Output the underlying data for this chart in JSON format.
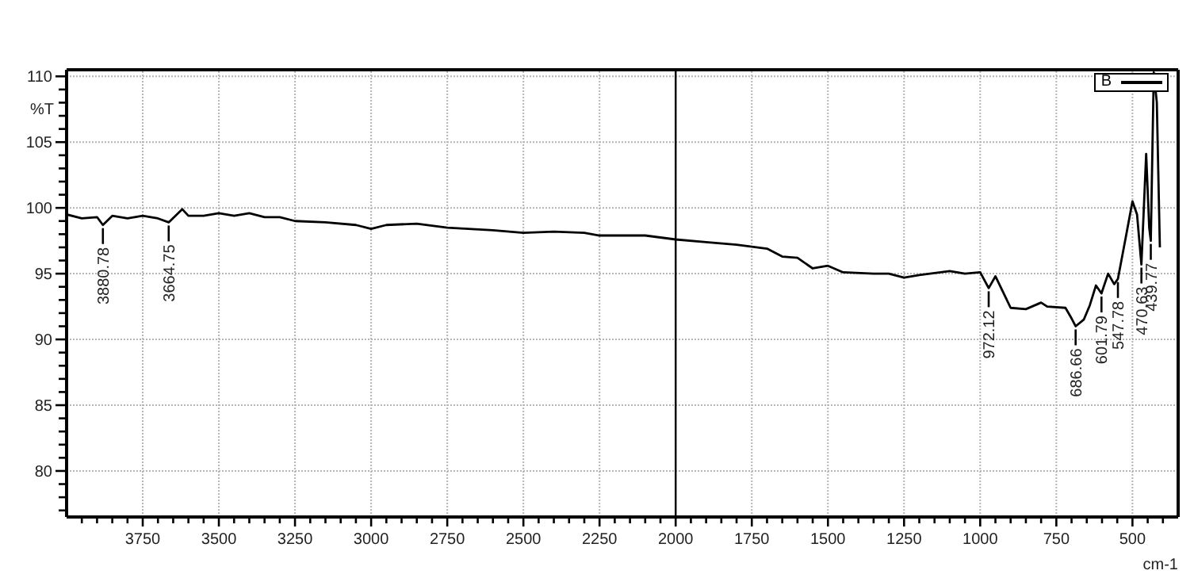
{
  "chart_data": {
    "type": "line",
    "ylabel": "%T",
    "xlabel": "cm-1",
    "xlim": [
      4000,
      350
    ],
    "ylim": [
      76.5,
      110.5
    ],
    "xticks": [
      {
        "value": 3950,
        "label": null
      },
      {
        "value": 3900,
        "label": null
      },
      {
        "value": 3850,
        "label": null
      },
      {
        "value": 3800,
        "label": null
      },
      3750,
      {
        "value": 3700,
        "label": null
      },
      {
        "value": 3650,
        "label": null
      },
      {
        "value": 3600,
        "label": null
      },
      {
        "value": 3550,
        "label": null
      },
      3500,
      {
        "value": 3450,
        "label": null
      },
      {
        "value": 3400,
        "label": null
      },
      {
        "value": 3350,
        "label": null
      },
      {
        "value": 3300,
        "label": null
      },
      3250,
      {
        "value": 3200,
        "label": null
      },
      {
        "value": 3150,
        "label": null
      },
      {
        "value": 3100,
        "label": null
      },
      {
        "value": 3050,
        "label": null
      },
      3000,
      {
        "value": 2950,
        "label": null
      },
      {
        "value": 2900,
        "label": null
      },
      {
        "value": 2850,
        "label": null
      },
      {
        "value": 2800,
        "label": null
      },
      2750,
      {
        "value": 2700,
        "label": null
      },
      {
        "value": 2650,
        "label": null
      },
      {
        "value": 2600,
        "label": null
      },
      {
        "value": 2550,
        "label": null
      },
      2500,
      {
        "value": 2450,
        "label": null
      },
      {
        "value": 2400,
        "label": null
      },
      {
        "value": 2350,
        "label": null
      },
      {
        "value": 2300,
        "label": null
      },
      2250,
      {
        "value": 2200,
        "label": null
      },
      {
        "value": 2150,
        "label": null
      },
      {
        "value": 2100,
        "label": null
      },
      {
        "value": 2050,
        "label": null
      },
      2000,
      {
        "value": 1950,
        "label": null
      },
      {
        "value": 1900,
        "label": null
      },
      {
        "value": 1850,
        "label": null
      },
      {
        "value": 1800,
        "label": null
      },
      1750,
      {
        "value": 1700,
        "label": null
      },
      {
        "value": 1650,
        "label": null
      },
      {
        "value": 1600,
        "label": null
      },
      {
        "value": 1550,
        "label": null
      },
      1500,
      {
        "value": 1450,
        "label": null
      },
      {
        "value": 1400,
        "label": null
      },
      {
        "value": 1350,
        "label": null
      },
      {
        "value": 1300,
        "label": null
      },
      1250,
      {
        "value": 1200,
        "label": null
      },
      {
        "value": 1150,
        "label": null
      },
      {
        "value": 1100,
        "label": null
      },
      {
        "value": 1050,
        "label": null
      },
      1000,
      {
        "value": 950,
        "label": null
      },
      {
        "value": 900,
        "label": null
      },
      {
        "value": 850,
        "label": null
      },
      {
        "value": 800,
        "label": null
      },
      750,
      {
        "value": 700,
        "label": null
      },
      {
        "value": 650,
        "label": null
      },
      {
        "value": 600,
        "label": null
      },
      {
        "value": 550,
        "label": null
      },
      500,
      {
        "value": 450,
        "label": null
      },
      {
        "value": 400,
        "label": null
      }
    ],
    "yticks": [
      {
        "value": 77,
        "label": null
      },
      {
        "value": 78,
        "label": null
      },
      {
        "value": 79,
        "label": null
      },
      80,
      {
        "value": 81,
        "label": null
      },
      {
        "value": 82,
        "label": null
      },
      {
        "value": 83,
        "label": null
      },
      {
        "value": 84,
        "label": null
      },
      85,
      {
        "value": 86,
        "label": null
      },
      {
        "value": 87,
        "label": null
      },
      {
        "value": 88,
        "label": null
      },
      {
        "value": 89,
        "label": null
      },
      90,
      {
        "value": 91,
        "label": null
      },
      {
        "value": 92,
        "label": null
      },
      {
        "value": 93,
        "label": null
      },
      {
        "value": 94,
        "label": null
      },
      95,
      {
        "value": 96,
        "label": null
      },
      {
        "value": 97,
        "label": null
      },
      {
        "value": 98,
        "label": null
      },
      {
        "value": 99,
        "label": null
      },
      100,
      {
        "value": 101,
        "label": null
      },
      {
        "value": 102,
        "label": null
      },
      {
        "value": 103,
        "label": null
      },
      {
        "value": 104,
        "label": null
      },
      105,
      {
        "value": 106,
        "label": null
      },
      {
        "value": 107,
        "label": null
      },
      {
        "value": 108,
        "label": null
      },
      {
        "value": 109,
        "label": null
      },
      110
    ],
    "grid": true,
    "legend": "top right",
    "marker": "none",
    "line_style": "solid",
    "x": [
      4000,
      3950,
      3900,
      3880.78,
      3850,
      3800,
      3750,
      3700,
      3664.75,
      3620,
      3600,
      3550,
      3500,
      3450,
      3400,
      3350,
      3300,
      3250,
      3150,
      3050,
      3000,
      2950,
      2850,
      2750,
      2600,
      2500,
      2400,
      2300,
      2250,
      2100,
      2000,
      1900,
      1800,
      1700,
      1650,
      1600,
      1550,
      1500,
      1450,
      1350,
      1300,
      1250,
      1200,
      1100,
      1050,
      1000,
      972.12,
      950,
      900,
      850,
      800,
      780,
      720,
      700,
      686.66,
      660,
      640,
      620,
      601.79,
      580,
      560,
      547.78,
      520,
      500,
      485,
      470.63,
      455,
      445,
      439.77,
      430,
      420,
      410
    ],
    "series": [
      {
        "name": "B",
        "color": "#000000",
        "values": [
          99.5,
          99.2,
          99.3,
          98.7,
          99.4,
          99.2,
          99.4,
          99.2,
          98.9,
          99.9,
          99.4,
          99.4,
          99.6,
          99.4,
          99.6,
          99.3,
          99.3,
          99.0,
          98.9,
          98.7,
          98.4,
          98.7,
          98.8,
          98.5,
          98.3,
          98.1,
          98.2,
          98.1,
          97.9,
          97.9,
          97.6,
          97.4,
          97.2,
          96.9,
          96.3,
          96.2,
          95.4,
          95.6,
          95.1,
          95.0,
          95.0,
          94.7,
          94.9,
          95.2,
          95.0,
          95.1,
          93.9,
          94.8,
          92.4,
          92.3,
          92.8,
          92.5,
          92.4,
          91.6,
          91.0,
          91.5,
          92.6,
          94.1,
          93.5,
          95.0,
          94.2,
          94.6,
          98.0,
          100.5,
          99.5,
          95.7,
          104.1,
          98.5,
          97.5,
          110.3,
          108.0,
          97.0
        ]
      }
    ],
    "ref_lines": [
      {
        "axis": "x",
        "value": 2000,
        "color": "#000000"
      }
    ],
    "annotations": [
      {
        "text": "3880.78",
        "x": 3880.78,
        "y": 98.7
      },
      {
        "text": "3664.75",
        "x": 3664.75,
        "y": 98.9
      },
      {
        "text": "972.12",
        "x": 972.12,
        "y": 93.9
      },
      {
        "text": "686.66",
        "x": 686.66,
        "y": 91.0
      },
      {
        "text": "601.79",
        "x": 601.79,
        "y": 93.5
      },
      {
        "text": "547.78",
        "x": 547.78,
        "y": 94.6
      },
      {
        "text": "470.63",
        "x": 470.63,
        "y": 95.7
      },
      {
        "text": "439.77",
        "x": 439.77,
        "y": 97.5
      }
    ]
  }
}
